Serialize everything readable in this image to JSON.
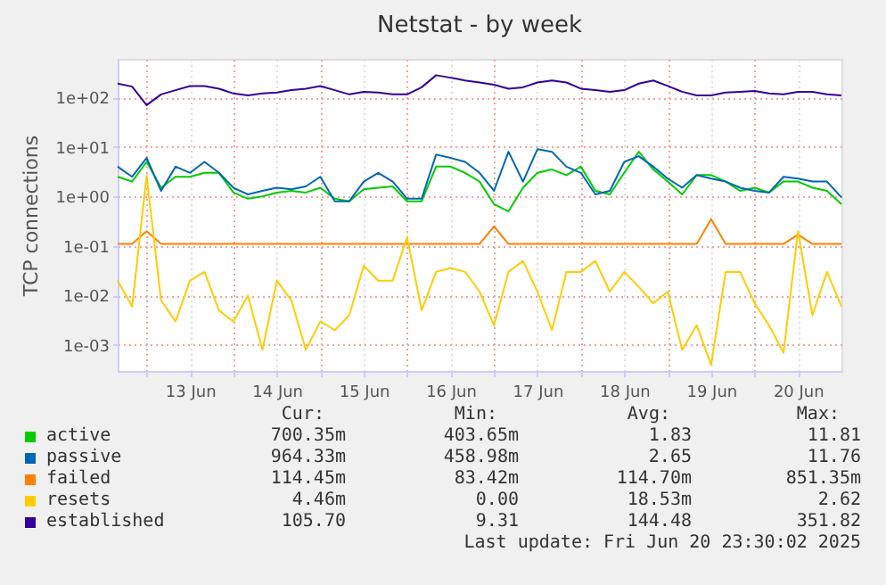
{
  "chart_data": {
    "type": "line",
    "title": "Netstat - by week",
    "ylabel": "TCP connections",
    "log": true,
    "grid": true,
    "legend": "bottom",
    "xlim": [
      "2025-06-12T16:00",
      "2025-06-21T00:00"
    ],
    "xticks": [
      {
        "value": "2025-06-13T00:00",
        "label": null
      },
      {
        "value": "2025-06-13T12:00",
        "label": "13 Jun"
      },
      {
        "value": "2025-06-14T00:00",
        "label": null
      },
      {
        "value": "2025-06-14T12:00",
        "label": "14 Jun"
      },
      {
        "value": "2025-06-15T00:00",
        "label": null
      },
      {
        "value": "2025-06-15T12:00",
        "label": "15 Jun"
      },
      {
        "value": "2025-06-16T00:00",
        "label": null
      },
      {
        "value": "2025-06-16T12:00",
        "label": "16 Jun"
      },
      {
        "value": "2025-06-17T00:00",
        "label": null
      },
      {
        "value": "2025-06-17T12:00",
        "label": "17 Jun"
      },
      {
        "value": "2025-06-18T00:00",
        "label": null
      },
      {
        "value": "2025-06-18T12:00",
        "label": "18 Jun"
      },
      {
        "value": "2025-06-19T00:00",
        "label": null
      },
      {
        "value": "2025-06-19T12:00",
        "label": "19 Jun"
      },
      {
        "value": "2025-06-20T00:00",
        "label": null
      },
      {
        "value": "2025-06-20T12:00",
        "label": "20 Jun"
      }
    ],
    "ylim": [
      0.0003,
      600
    ],
    "yticks": [
      {
        "value": 0.001,
        "label": "1e-03"
      },
      {
        "value": 0.01,
        "label": "1e-02"
      },
      {
        "value": 0.1,
        "label": "1e-01"
      },
      {
        "value": 1,
        "label": "1e+00"
      },
      {
        "value": 10,
        "label": "1e+01"
      },
      {
        "value": 100,
        "label": "1e+02"
      }
    ],
    "x": [
      "2025-06-12T16:00",
      "2025-06-12T20:00",
      "2025-06-13T00:00",
      "2025-06-13T04:00",
      "2025-06-13T08:00",
      "2025-06-13T12:00",
      "2025-06-13T16:00",
      "2025-06-13T20:00",
      "2025-06-14T00:00",
      "2025-06-14T04:00",
      "2025-06-14T08:00",
      "2025-06-14T12:00",
      "2025-06-14T16:00",
      "2025-06-14T20:00",
      "2025-06-15T00:00",
      "2025-06-15T04:00",
      "2025-06-15T08:00",
      "2025-06-15T12:00",
      "2025-06-15T16:00",
      "2025-06-15T20:00",
      "2025-06-16T00:00",
      "2025-06-16T04:00",
      "2025-06-16T08:00",
      "2025-06-16T12:00",
      "2025-06-16T16:00",
      "2025-06-16T20:00",
      "2025-06-17T00:00",
      "2025-06-17T04:00",
      "2025-06-17T08:00",
      "2025-06-17T12:00",
      "2025-06-17T16:00",
      "2025-06-17T20:00",
      "2025-06-18T00:00",
      "2025-06-18T04:00",
      "2025-06-18T08:00",
      "2025-06-18T12:00",
      "2025-06-18T16:00",
      "2025-06-18T20:00",
      "2025-06-19T00:00",
      "2025-06-19T04:00",
      "2025-06-19T08:00",
      "2025-06-19T12:00",
      "2025-06-19T16:00",
      "2025-06-19T20:00",
      "2025-06-20T00:00",
      "2025-06-20T04:00",
      "2025-06-20T08:00",
      "2025-06-20T12:00",
      "2025-06-20T16:00",
      "2025-06-20T20:00",
      "2025-06-21T00:00"
    ],
    "series": [
      {
        "name": "active",
        "color": "#00cc00",
        "values": [
          2.5,
          2,
          5,
          1.5,
          2.5,
          2.5,
          3,
          3,
          1.2,
          0.9,
          1,
          1.2,
          1.3,
          1.2,
          1.5,
          0.9,
          0.8,
          1.4,
          1.5,
          1.6,
          0.8,
          0.8,
          4,
          4,
          3,
          2,
          0.7,
          0.5,
          1.5,
          3,
          3.5,
          2.7,
          4,
          1.3,
          1.1,
          3,
          8,
          3.5,
          2,
          1.1,
          2.7,
          2.7,
          2,
          1.3,
          1.5,
          1.2,
          2,
          2,
          1.5,
          1.3,
          0.7
        ]
      },
      {
        "name": "passive",
        "color": "#0066b3",
        "values": [
          4,
          2.5,
          6,
          1.3,
          4,
          3,
          5,
          3,
          1.5,
          1.1,
          1.3,
          1.5,
          1.4,
          1.6,
          2.5,
          0.8,
          0.8,
          2,
          3,
          2,
          0.9,
          0.9,
          7,
          6,
          5,
          3,
          1.3,
          8,
          2,
          9,
          8,
          4,
          3,
          1.1,
          1.3,
          5,
          6.5,
          4,
          2.3,
          1.5,
          2.7,
          2.3,
          2,
          1.5,
          1.3,
          1.2,
          2.5,
          2.3,
          2,
          2,
          0.96
        ]
      },
      {
        "name": "failed",
        "color": "#ff8000",
        "values": [
          0.11,
          0.11,
          0.2,
          0.11,
          0.11,
          0.11,
          0.11,
          0.11,
          0.11,
          0.11,
          0.11,
          0.11,
          0.11,
          0.11,
          0.11,
          0.11,
          0.11,
          0.11,
          0.11,
          0.11,
          0.11,
          0.11,
          0.11,
          0.11,
          0.11,
          0.11,
          0.25,
          0.11,
          0.11,
          0.11,
          0.11,
          0.11,
          0.11,
          0.11,
          0.11,
          0.11,
          0.11,
          0.11,
          0.11,
          0.11,
          0.11,
          0.35,
          0.11,
          0.11,
          0.11,
          0.11,
          0.11,
          0.17,
          0.11,
          0.11,
          0.11
        ]
      },
      {
        "name": "resets",
        "color": "#ffcc00",
        "values": [
          0.02,
          0.006,
          2.62,
          0.008,
          0.003,
          0.02,
          0.03,
          0.005,
          0.003,
          0.01,
          0.0008,
          0.02,
          0.008,
          0.0008,
          0.003,
          0.002,
          0.004,
          0.04,
          0.02,
          0.02,
          0.15,
          0.005,
          0.03,
          0.036,
          0.03,
          0.012,
          0.0025,
          0.03,
          0.05,
          0.012,
          0.002,
          0.03,
          0.03,
          0.05,
          0.012,
          0.03,
          0.015,
          0.007,
          0.012,
          0.0008,
          0.0025,
          0.0004,
          0.03,
          0.03,
          0.007,
          0.0025,
          0.0007,
          0.2,
          0.004,
          0.03,
          0.006
        ]
      },
      {
        "name": "established",
        "color": "#330099",
        "values": [
          190,
          165,
          70,
          115,
          140,
          170,
          170,
          150,
          120,
          110,
          120,
          125,
          140,
          150,
          170,
          140,
          115,
          130,
          125,
          115,
          115,
          160,
          280,
          250,
          220,
          200,
          180,
          150,
          160,
          200,
          220,
          200,
          150,
          140,
          130,
          140,
          190,
          220,
          170,
          130,
          110,
          110,
          125,
          130,
          135,
          120,
          115,
          130,
          130,
          115,
          110
        ]
      }
    ],
    "annotations": [
      "Cur:",
      "Min:",
      "Avg:",
      "Max:",
      "700.35m",
      "403.65m",
      "1.83",
      "11.81",
      "964.33m",
      "458.98m",
      "2.65",
      "11.76",
      "114.45m",
      "83.42m",
      "114.70m",
      "851.35m",
      "4.46m",
      "0.00",
      "18.53m",
      "2.62",
      "105.70",
      "9.31",
      "144.48",
      "351.82",
      "Last update: Fri Jun 20 23:30:02 2025"
    ]
  }
}
